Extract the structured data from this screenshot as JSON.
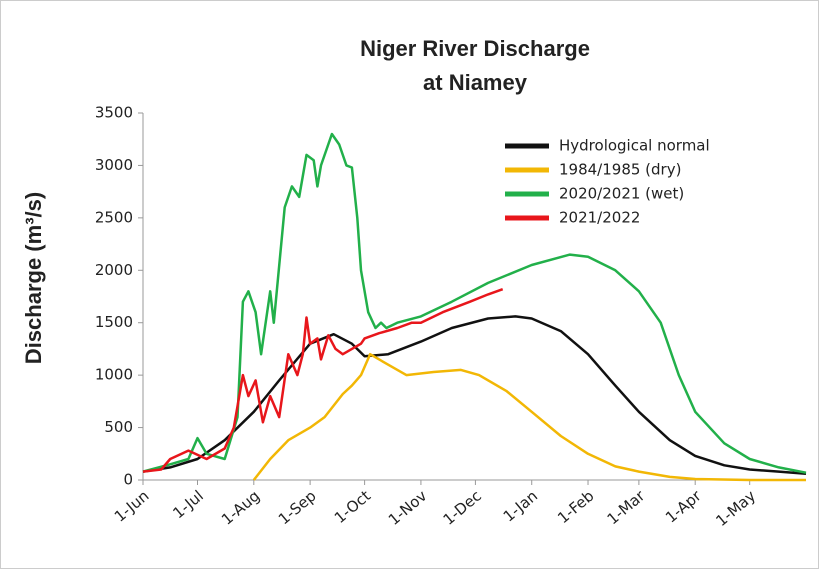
{
  "chart_data": {
    "type": "line",
    "title": [
      "Niger River Discharge",
      "at Niamey"
    ],
    "ylabel": "Discharge (m³/s)",
    "xlim": [
      0,
      365
    ],
    "xticks": [
      {
        "value": 0,
        "label": "1-Jun"
      },
      {
        "value": 30,
        "label": "1-Jul"
      },
      {
        "value": 61,
        "label": "1-Aug"
      },
      {
        "value": 92,
        "label": "1-Sep"
      },
      {
        "value": 122,
        "label": "1-Oct"
      },
      {
        "value": 153,
        "label": "1-Nov"
      },
      {
        "value": 183,
        "label": "1-Dec"
      },
      {
        "value": 214,
        "label": "1-Jan"
      },
      {
        "value": 245,
        "label": "1-Feb"
      },
      {
        "value": 273,
        "label": "1-Mar"
      },
      {
        "value": 304,
        "label": "1-Apr"
      },
      {
        "value": 334,
        "label": "1-May"
      }
    ],
    "ylim": [
      0,
      3500
    ],
    "yticks": [
      0,
      500,
      1000,
      1500,
      2000,
      2500,
      3000,
      3500
    ],
    "legend": "upper right",
    "series": [
      {
        "name": "Hydrological normal",
        "color": "#111111",
        "x": [
          0,
          15,
          30,
          45,
          61,
          75,
          92,
          105,
          115,
          122,
          135,
          153,
          170,
          190,
          205,
          214,
          230,
          245,
          260,
          273,
          290,
          304,
          320,
          334,
          350,
          365
        ],
        "values": [
          80,
          120,
          200,
          380,
          650,
          950,
          1300,
          1390,
          1300,
          1180,
          1200,
          1320,
          1450,
          1540,
          1560,
          1540,
          1420,
          1200,
          900,
          650,
          380,
          230,
          140,
          100,
          80,
          60
        ]
      },
      {
        "name": "1984/1985 (dry)",
        "color": "#f2b705",
        "x": [
          61,
          70,
          80,
          92,
          100,
          110,
          115,
          120,
          125,
          135,
          145,
          160,
          175,
          185,
          200,
          214,
          230,
          245,
          260,
          273,
          290,
          304,
          334,
          365
        ],
        "values": [
          0,
          200,
          380,
          500,
          600,
          820,
          900,
          1000,
          1200,
          1100,
          1000,
          1030,
          1050,
          1000,
          850,
          650,
          420,
          250,
          130,
          80,
          30,
          10,
          0,
          0
        ]
      },
      {
        "name": "2020/2021 (wet)",
        "color": "#22b04a",
        "x": [
          0,
          15,
          25,
          30,
          35,
          45,
          52,
          55,
          58,
          62,
          65,
          70,
          72,
          78,
          82,
          86,
          90,
          94,
          96,
          98,
          104,
          108,
          112,
          115,
          118,
          120,
          124,
          128,
          131,
          134,
          140,
          153,
          170,
          190,
          214,
          235,
          245,
          260,
          273,
          285,
          295,
          304,
          320,
          334,
          350,
          365
        ],
        "values": [
          80,
          150,
          200,
          400,
          250,
          200,
          600,
          1700,
          1800,
          1600,
          1200,
          1800,
          1500,
          2600,
          2800,
          2700,
          3100,
          3050,
          2800,
          3000,
          3300,
          3200,
          3000,
          2980,
          2500,
          2000,
          1600,
          1450,
          1500,
          1450,
          1500,
          1560,
          1700,
          1880,
          2050,
          2150,
          2130,
          2000,
          1800,
          1500,
          1000,
          650,
          350,
          200,
          120,
          70
        ]
      },
      {
        "name": "2021/2022",
        "color": "#e8161b",
        "x": [
          0,
          10,
          15,
          25,
          35,
          45,
          50,
          55,
          58,
          62,
          66,
          70,
          75,
          80,
          85,
          88,
          90,
          92,
          96,
          98,
          102,
          106,
          110,
          115,
          120,
          122,
          130,
          140,
          148,
          153,
          165,
          180,
          190,
          198
        ],
        "values": [
          80,
          100,
          200,
          280,
          200,
          300,
          500,
          1000,
          800,
          950,
          550,
          800,
          600,
          1200,
          1000,
          1200,
          1550,
          1300,
          1350,
          1150,
          1380,
          1250,
          1200,
          1250,
          1300,
          1350,
          1400,
          1450,
          1500,
          1500,
          1600,
          1700,
          1770,
          1820
        ]
      }
    ]
  }
}
